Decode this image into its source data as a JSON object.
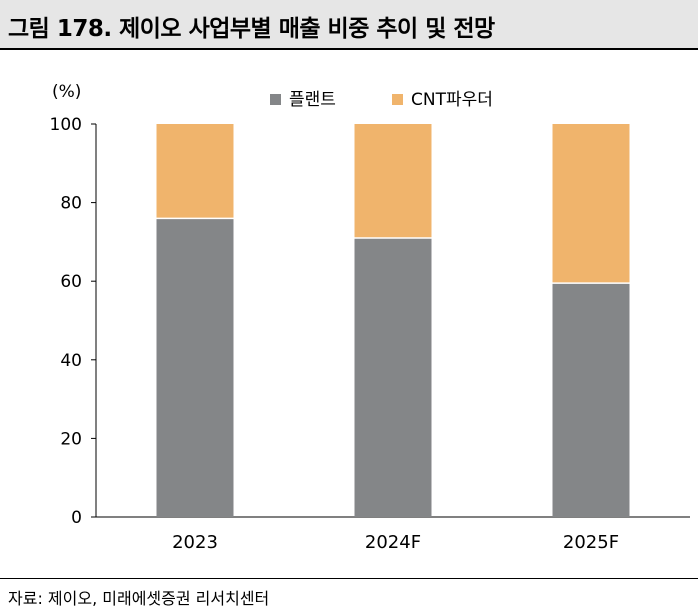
{
  "figure": {
    "title": "그림 178. 제이오 사업부별 매출 비중 추이 및 전망",
    "source": "자료: 제이오, 미래에셋증권 리서치센터"
  },
  "chart_data": {
    "type": "bar",
    "stacked": true,
    "title": "그림 178. 제이오 사업부별 매출 비중 추이 및 전망",
    "unit_label": "(%)",
    "xlabel": "",
    "ylabel": "(%)",
    "categories": [
      "2023",
      "2024F",
      "2025F"
    ],
    "series": [
      {
        "name": "플랜트",
        "values": [
          76,
          71,
          59.5
        ],
        "color": "#848688"
      },
      {
        "name": "CNT파우더",
        "values": [
          24,
          29,
          40.5
        ],
        "color": "#f0b46c"
      }
    ],
    "ylim": [
      0,
      100
    ],
    "yticks": [
      0,
      20,
      40,
      60,
      80,
      100
    ],
    "legend_position": "top",
    "grid": false
  }
}
